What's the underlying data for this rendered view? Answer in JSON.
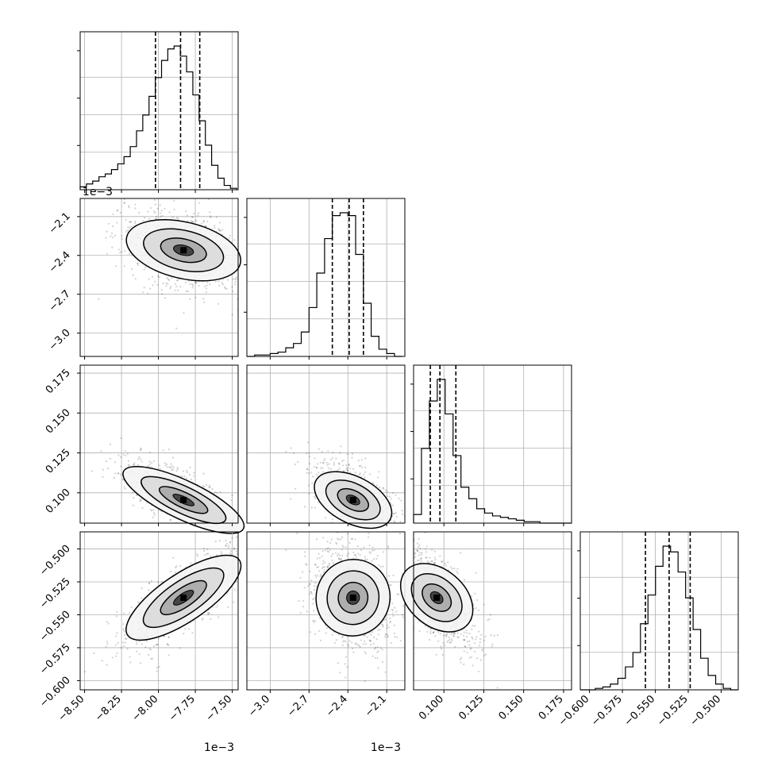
{
  "chart_data": {
    "type": "corner",
    "grid": true,
    "n_params": 4,
    "parameters": [
      {
        "range": [
          -8.53,
          -7.46
        ],
        "ticks": [
          -8.5,
          -8.25,
          -8.0,
          -7.75,
          -7.5
        ],
        "tick_labels": [
          "−8.50",
          "−8.25",
          "−8.00",
          "−7.75",
          "−7.50"
        ],
        "offset": "1e−3",
        "quantiles": [
          -8.02,
          -7.85,
          -7.72
        ],
        "mode": -7.83,
        "sd": 0.17
      },
      {
        "range": [
          -3.18,
          -1.96
        ],
        "ticks": [
          -3.0,
          -2.7,
          -2.4,
          -2.1
        ],
        "tick_labels": [
          "−3.0",
          "−2.7",
          "−2.4",
          "−2.1"
        ],
        "offset": "1e−3",
        "quantiles": [
          -2.52,
          -2.39,
          -2.28
        ],
        "mode": -2.36,
        "sd": 0.13
      },
      {
        "range": [
          0.081,
          0.18
        ],
        "ticks": [
          0.1,
          0.125,
          0.15,
          0.175
        ],
        "tick_labels": [
          "0.100",
          "0.125",
          "0.150",
          "0.175"
        ],
        "offset": "",
        "quantiles": [
          0.0915,
          0.0975,
          0.1075
        ],
        "mode": 0.0955,
        "sd": 0.01
      },
      {
        "range": [
          -0.607,
          -0.487
        ],
        "ticks": [
          -0.6,
          -0.575,
          -0.55,
          -0.525,
          -0.5
        ],
        "tick_labels": [
          "−0.600",
          "−0.575",
          "−0.550",
          "−0.525",
          "−0.500"
        ],
        "offset": "",
        "quantiles": [
          -0.5575,
          -0.5395,
          -0.5235
        ],
        "mode": -0.537,
        "sd": 0.016
      }
    ],
    "y_axis": [
      null,
      {
        "ticks": [
          -2.1,
          -2.4,
          -2.7,
          -3.0
        ],
        "tick_labels": [
          "−2.1",
          "−2.4",
          "−2.7",
          "−3.0"
        ],
        "offset": "1e−3"
      },
      {
        "ticks": [
          0.175,
          0.15,
          0.125,
          0.1
        ],
        "tick_labels": [
          "0.175",
          "0.150",
          "0.125",
          "0.100"
        ],
        "offset": ""
      },
      {
        "ticks": [
          -0.5,
          -0.525,
          -0.55,
          -0.575,
          -0.6
        ],
        "tick_labels": [
          "−0.500",
          "−0.525",
          "−0.550",
          "−0.575",
          "−0.600"
        ],
        "offset": ""
      }
    ],
    "correlations": {
      "1-0": -0.35,
      "2-0": -0.75,
      "2-1": -0.55,
      "3-0": 0.8,
      "3-1": -0.2,
      "3-2": -0.65
    },
    "histograms": [
      [
        0.02,
        0.04,
        0.06,
        0.09,
        0.11,
        0.14,
        0.18,
        0.23,
        0.3,
        0.41,
        0.52,
        0.65,
        0.78,
        0.9,
        0.98,
        1.0,
        0.93,
        0.82,
        0.66,
        0.48,
        0.31,
        0.17,
        0.08,
        0.03,
        0.01
      ],
      [
        0.0,
        0.01,
        0.01,
        0.02,
        0.03,
        0.06,
        0.09,
        0.17,
        0.34,
        0.58,
        0.82,
        0.98,
        1.0,
        0.98,
        0.71,
        0.37,
        0.14,
        0.05,
        0.02,
        0.0
      ],
      [
        0.06,
        0.52,
        0.85,
        1.0,
        0.76,
        0.47,
        0.25,
        0.17,
        0.1,
        0.07,
        0.05,
        0.04,
        0.03,
        0.02,
        0.01,
        0.01,
        0.0,
        0.0,
        0.0,
        0.0
      ],
      [
        0.0,
        0.0,
        0.01,
        0.02,
        0.04,
        0.08,
        0.16,
        0.26,
        0.46,
        0.66,
        0.86,
        1.0,
        0.96,
        0.82,
        0.64,
        0.42,
        0.22,
        0.1,
        0.04,
        0.01,
        0.0
      ]
    ]
  }
}
